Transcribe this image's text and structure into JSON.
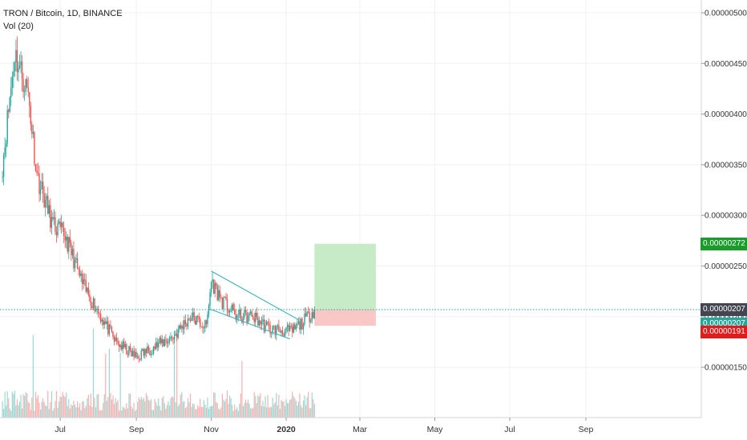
{
  "legend": {
    "symbol": "TRON / Bitcoin, 1D, BINANCE",
    "volume": "Vol (20)"
  },
  "price_labels": [
    {
      "text": "0.00000272",
      "color": "#1a9c2a"
    },
    {
      "text": "0.00000207",
      "color": "#434651"
    },
    {
      "text": "0.00000207",
      "color": "#26a69a"
    },
    {
      "text": "0.00000191",
      "color": "#e21b1b"
    }
  ],
  "colors": {
    "up": "#26a69a",
    "down": "#ef5350",
    "target_zone": "#c8ebc7",
    "stop_zone": "#f8c7c6",
    "channel": "#4bb8c1",
    "grid": "#eef0f3"
  },
  "chart_data": {
    "type": "candlestick",
    "title": "TRON / Bitcoin, 1D, BINANCE",
    "indicators": [
      "Vol (20)"
    ],
    "y_axis": {
      "ticks": [
        "0.00000500",
        "0.00000450",
        "0.00000400",
        "0.00000350",
        "0.00000300",
        "0.00000250",
        "0.00000200",
        "0.00000150"
      ],
      "range": [
        6e-07,
        5.1e-06
      ],
      "scale": "linear",
      "side": "right"
    },
    "x_axis": {
      "ticks": [
        "Jul",
        "Sep",
        "Nov",
        "2020",
        "Mar",
        "May",
        "Jul",
        "Sep"
      ],
      "bold_ticks": [
        "2020"
      ]
    },
    "grid": true,
    "price_series": {
      "anchors": [
        {
          "date": "2019-05-15",
          "price": 3.5e-06
        },
        {
          "date": "2019-05-25",
          "price": 4.6e-06
        },
        {
          "date": "2019-06-05",
          "price": 4.2e-06
        },
        {
          "date": "2019-06-12",
          "price": 3.4e-06
        },
        {
          "date": "2019-06-25",
          "price": 2.9e-06
        },
        {
          "date": "2019-07-05",
          "price": 2.8e-06
        },
        {
          "date": "2019-07-20",
          "price": 2.3e-06
        },
        {
          "date": "2019-08-01",
          "price": 2.05e-06
        },
        {
          "date": "2019-08-15",
          "price": 1.75e-06
        },
        {
          "date": "2019-09-01",
          "price": 1.6e-06
        },
        {
          "date": "2019-09-15",
          "price": 1.7e-06
        },
        {
          "date": "2019-10-01",
          "price": 1.8e-06
        },
        {
          "date": "2019-10-15",
          "price": 2e-06
        },
        {
          "date": "2019-10-28",
          "price": 1.9e-06
        },
        {
          "date": "2019-11-01",
          "price": 2.35e-06
        },
        {
          "date": "2019-11-10",
          "price": 2.15e-06
        },
        {
          "date": "2019-11-22",
          "price": 2e-06
        },
        {
          "date": "2019-12-05",
          "price": 2e-06
        },
        {
          "date": "2019-12-18",
          "price": 1.88e-06
        },
        {
          "date": "2020-01-05",
          "price": 1.85e-06
        },
        {
          "date": "2020-01-15",
          "price": 1.95e-06
        },
        {
          "date": "2020-01-24",
          "price": 2.07e-06
        }
      ]
    },
    "annotations": {
      "falling_wedge": {
        "upper": [
          {
            "date": "2019-11-01",
            "price": 2.45e-06
          },
          {
            "date": "2020-01-11",
            "price": 1.97e-06
          }
        ],
        "lower": [
          {
            "date": "2019-11-01",
            "price": 2.07e-06
          },
          {
            "date": "2020-01-04",
            "price": 1.78e-06
          }
        ]
      },
      "long_position": {
        "start": "2020-01-24",
        "end": "2020-03-14",
        "entry": 2.07e-06,
        "target": 2.72e-06,
        "stop": 1.91e-06
      },
      "last_price_line": 2.07e-06
    }
  }
}
